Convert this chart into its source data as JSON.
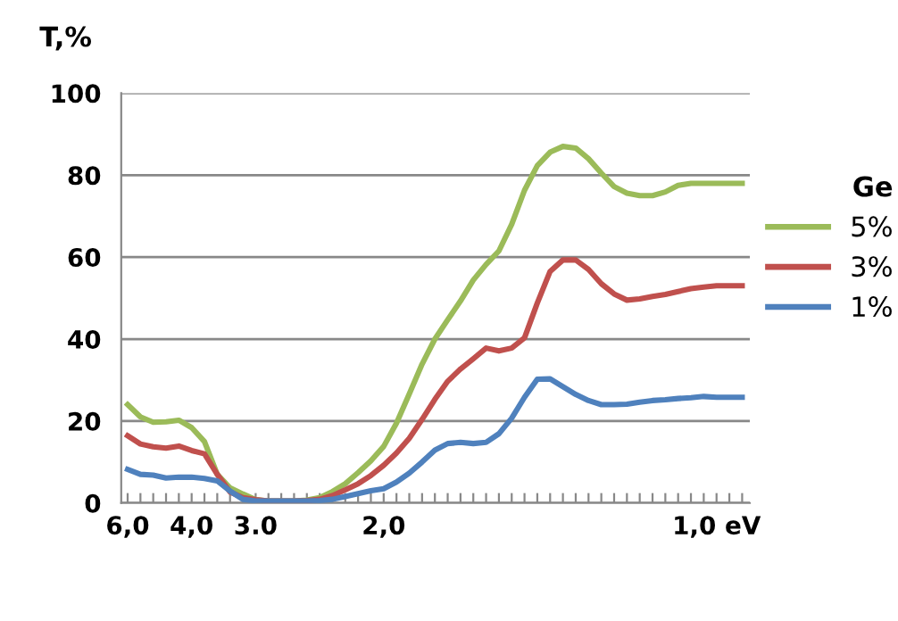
{
  "chart_data": {
    "type": "line",
    "ylabel": "T,%",
    "legend_title": "Ge",
    "legend": "right",
    "grid": "y",
    "line_style": "solid",
    "ylim": [
      0,
      100
    ],
    "yticks": [
      0,
      20,
      40,
      60,
      80,
      100
    ],
    "categories": [
      "6,0",
      null,
      null,
      null,
      null,
      "4,0",
      null,
      null,
      null,
      null,
      "3.0",
      null,
      null,
      null,
      null,
      null,
      null,
      null,
      null,
      null,
      "2,0",
      null,
      null,
      null,
      null,
      null,
      null,
      null,
      null,
      null,
      null,
      null,
      null,
      null,
      null,
      null,
      null,
      null,
      null,
      null,
      null,
      null,
      null,
      null,
      null,
      null,
      "1,0 eV",
      null,
      null
    ],
    "series": [
      {
        "name": "5%",
        "color": "#9bbb59",
        "values": [
          24,
          21,
          19.7,
          19.8,
          20.2,
          18.4,
          15,
          7,
          3.7,
          2.2,
          0.8,
          0.5,
          0.5,
          0.5,
          0.7,
          1.3,
          2.8,
          4.7,
          7.4,
          10.3,
          13.8,
          19.5,
          26.6,
          33.9,
          40,
          44.7,
          49.3,
          54.4,
          58.2,
          61.5,
          68,
          76.3,
          82.3,
          85.6,
          87,
          86.6,
          84,
          80.5,
          77.2,
          75.6,
          75,
          75,
          75.9,
          77.5,
          78,
          78,
          78,
          78,
          78
        ]
      },
      {
        "name": "3%",
        "color": "#c0504d",
        "values": [
          16.4,
          14.4,
          13.7,
          13.4,
          13.9,
          12.8,
          12,
          7,
          2.7,
          1.3,
          0.8,
          0.5,
          0.5,
          0.5,
          0.6,
          0.9,
          1.8,
          3.2,
          4.7,
          6.7,
          9.2,
          12.2,
          15.8,
          20.4,
          25.3,
          29.7,
          32.7,
          35.2,
          37.8,
          37.1,
          37.8,
          40.3,
          48.8,
          56.5,
          59.3,
          59.3,
          57,
          53.5,
          51,
          49.5,
          49.8,
          50.4,
          50.9,
          51.6,
          52.3,
          52.7,
          53,
          53,
          53
        ]
      },
      {
        "name": "1%",
        "color": "#4f81bd",
        "values": [
          8.2,
          7,
          6.8,
          6.1,
          6.3,
          6.3,
          6,
          5.4,
          2.9,
          0.9,
          0.5,
          0.5,
          0.5,
          0.5,
          0.5,
          0.6,
          0.9,
          1.6,
          2.3,
          3,
          3.5,
          5.1,
          7.3,
          10,
          12.9,
          14.5,
          14.8,
          14.5,
          14.8,
          16.9,
          20.7,
          25.8,
          30.2,
          30.3,
          28.4,
          26.5,
          25,
          24,
          24,
          24.1,
          24.6,
          25,
          25.2,
          25.5,
          25.7,
          26,
          25.8,
          25.8,
          25.8
        ]
      }
    ]
  }
}
